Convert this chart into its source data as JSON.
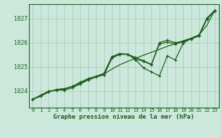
{
  "title": "Graphe pression niveau de la mer (hPa)",
  "bg_color": "#cce8dc",
  "grid_color": "#aaccbb",
  "line_color": "#1a5c1a",
  "ylim": [
    1023.3,
    1027.6
  ],
  "yticks": [
    1024,
    1025,
    1026,
    1027
  ],
  "x_labels": [
    "0",
    "1",
    "2",
    "3",
    "4",
    "5",
    "6",
    "7",
    "8",
    "9",
    "10",
    "11",
    "12",
    "13",
    "14",
    "15",
    "16",
    "17",
    "18",
    "19",
    "20",
    "21",
    "22",
    "23"
  ],
  "series_straight": [
    1023.65,
    1023.78,
    1023.95,
    1024.05,
    1024.08,
    1024.18,
    1024.32,
    1024.45,
    1024.58,
    1024.7,
    1024.9,
    1025.08,
    1025.22,
    1025.35,
    1025.48,
    1025.6,
    1025.72,
    1025.85,
    1025.95,
    1026.08,
    1026.18,
    1026.32,
    1026.72,
    1027.35
  ],
  "series_upper": [
    1023.65,
    1023.78,
    1023.95,
    1024.05,
    1024.08,
    1024.18,
    1024.35,
    1024.5,
    1024.6,
    1024.72,
    1025.42,
    1025.55,
    1025.52,
    1025.38,
    1025.25,
    1025.1,
    1026.0,
    1026.1,
    1026.0,
    1026.05,
    1026.18,
    1026.32,
    1027.02,
    1027.35
  ],
  "series_lower": [
    1023.65,
    1023.78,
    1023.95,
    1024.05,
    1024.08,
    1024.18,
    1024.35,
    1024.5,
    1024.6,
    1024.72,
    1025.38,
    1025.52,
    1025.52,
    1025.32,
    1025.22,
    1025.08,
    1025.95,
    1026.02,
    1025.95,
    1026.02,
    1026.15,
    1026.28,
    1026.98,
    1027.32
  ],
  "series_jagged": [
    1023.65,
    1023.82,
    1023.98,
    1024.03,
    1024.03,
    1024.12,
    1024.28,
    1024.45,
    1024.58,
    1024.65,
    1025.35,
    1025.52,
    1025.52,
    1025.28,
    1024.95,
    1024.78,
    1024.62,
    1025.45,
    1025.28,
    1025.98,
    1026.18,
    1026.28,
    1027.0,
    1027.3
  ]
}
